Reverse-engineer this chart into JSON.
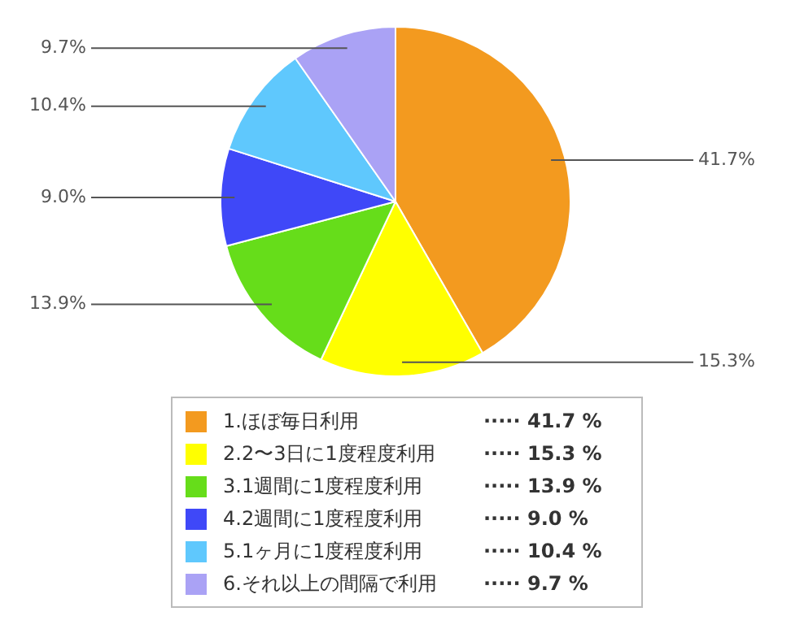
{
  "chart_data": {
    "type": "pie",
    "categories": [
      "1.ほぼ毎日利用",
      "2.2〜3日に1度程度利用",
      "3.1週間に1度程度利用",
      "4.2週間に1度程度利用",
      "5.1ヶ月に1度程度利用",
      "6.それ以上の間隔で利用"
    ],
    "values": [
      41.7,
      15.3,
      13.9,
      9.0,
      10.4,
      9.7
    ],
    "colors": [
      "#f39a1f",
      "#ffff00",
      "#66dd1a",
      "#3f48f8",
      "#5fc8fd",
      "#aaa2f5"
    ],
    "value_labels": [
      "41.7%",
      "15.3%",
      "13.9%",
      "9.0%",
      "10.4%",
      "9.7%"
    ],
    "annotations": [
      "····· 41.7 %",
      "····· 15.3 %",
      "····· 13.9 %",
      "····· 9.0 %",
      "····· 10.4 %",
      "····· 9.7 %"
    ],
    "legend": "bottom"
  }
}
